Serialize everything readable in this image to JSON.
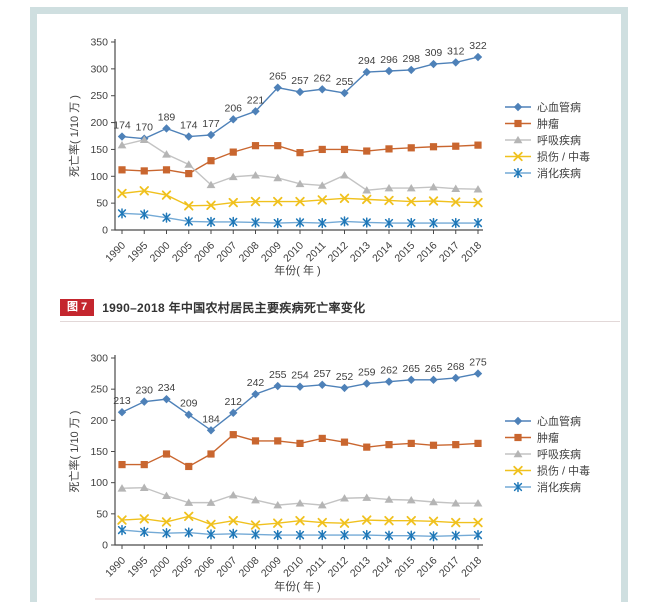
{
  "page": {
    "background": "#ffffff",
    "frame_color": "#cfdfe0"
  },
  "caption": {
    "badge": "图 7",
    "badge_color": "#c4262e",
    "text": "1990–2018 年中国农村居民主要疾病死亡率变化"
  },
  "chart_data": [
    {
      "id": "diseases-mortality-top",
      "type": "line",
      "x": [
        "1990",
        "1995",
        "2000",
        "2005",
        "2006",
        "2007",
        "2008",
        "2009",
        "2010",
        "2011",
        "2012",
        "2013",
        "2014",
        "2015",
        "2016",
        "2017",
        "2018"
      ],
      "xlabel": "年份( 年 )",
      "ylabel": "死亡率( 1/10 万 )",
      "ylim": [
        0,
        350
      ],
      "ytick_step": 50,
      "grid": false,
      "legend_position": "right",
      "axis_color": "#4a4a4a",
      "label_color": "#4a4a4a",
      "series": [
        {
          "name": "心血管病",
          "marker": "diamond",
          "color": "#4e81b8",
          "labeled": true,
          "values": [
            174,
            170,
            189,
            174,
            177,
            206,
            221,
            265,
            257,
            262,
            255,
            294,
            296,
            298,
            309,
            312,
            322
          ]
        },
        {
          "name": "肿瘤",
          "marker": "square",
          "color": "#c9662f",
          "values": [
            112,
            110,
            112,
            105,
            129,
            145,
            157,
            157,
            144,
            150,
            150,
            147,
            151,
            153,
            155,
            156,
            158
          ]
        },
        {
          "name": "呼吸疾病",
          "marker": "triangle",
          "color": "#b5b5b5",
          "line_color": "#c3c3c3",
          "values": [
            158,
            168,
            141,
            122,
            84,
            99,
            102,
            97,
            86,
            83,
            102,
            74,
            78,
            78,
            80,
            77,
            76
          ]
        },
        {
          "name": "损伤 / 中毒",
          "marker": "x",
          "color": "#f0c11e",
          "values": [
            68,
            73,
            65,
            45,
            46,
            51,
            53,
            53,
            53,
            56,
            59,
            57,
            55,
            53,
            54,
            52,
            51
          ]
        },
        {
          "name": "消化疾病",
          "marker": "asterisk",
          "color": "#1f78b8",
          "line_color": "#74aad6",
          "values": [
            31,
            29,
            23,
            16,
            15,
            15,
            14,
            13,
            14,
            13,
            16,
            14,
            13,
            13,
            13,
            13,
            13
          ]
        }
      ]
    },
    {
      "id": "rural-diseases-mortality",
      "type": "line",
      "x": [
        "1990",
        "1995",
        "2000",
        "2005",
        "2006",
        "2007",
        "2008",
        "2009",
        "2010",
        "2011",
        "2012",
        "2013",
        "2014",
        "2015",
        "2016",
        "2017",
        "2018"
      ],
      "xlabel": "年份( 年 )",
      "ylabel": "死亡率( 1/10 万 )",
      "ylim": [
        0,
        300
      ],
      "ytick_step": 50,
      "grid": false,
      "legend_position": "right",
      "axis_color": "#4a4a4a",
      "label_color": "#4a4a4a",
      "series": [
        {
          "name": "心血管病",
          "marker": "diamond",
          "color": "#4e81b8",
          "labeled": true,
          "values": [
            213,
            230,
            234,
            209,
            184,
            212,
            242,
            255,
            254,
            257,
            252,
            259,
            262,
            265,
            265,
            268,
            275
          ]
        },
        {
          "name": "肿瘤",
          "marker": "square",
          "color": "#c9662f",
          "values": [
            129,
            129,
            146,
            126,
            146,
            177,
            167,
            167,
            163,
            171,
            165,
            157,
            161,
            163,
            160,
            161,
            163
          ]
        },
        {
          "name": "呼吸疾病",
          "marker": "triangle",
          "color": "#b5b5b5",
          "line_color": "#c3c3c3",
          "values": [
            91,
            92,
            79,
            68,
            68,
            80,
            72,
            64,
            67,
            64,
            75,
            76,
            73,
            72,
            69,
            67,
            67
          ]
        },
        {
          "name": "损伤 / 中毒",
          "marker": "x",
          "color": "#f0c11e",
          "values": [
            40,
            42,
            37,
            46,
            33,
            39,
            32,
            35,
            39,
            36,
            35,
            40,
            39,
            39,
            38,
            36,
            36
          ]
        },
        {
          "name": "消化疾病",
          "marker": "asterisk",
          "color": "#1f78b8",
          "line_color": "#74aad6",
          "values": [
            24,
            21,
            19,
            20,
            17,
            18,
            17,
            16,
            16,
            16,
            16,
            16,
            15,
            15,
            14,
            15,
            16
          ]
        }
      ]
    }
  ]
}
